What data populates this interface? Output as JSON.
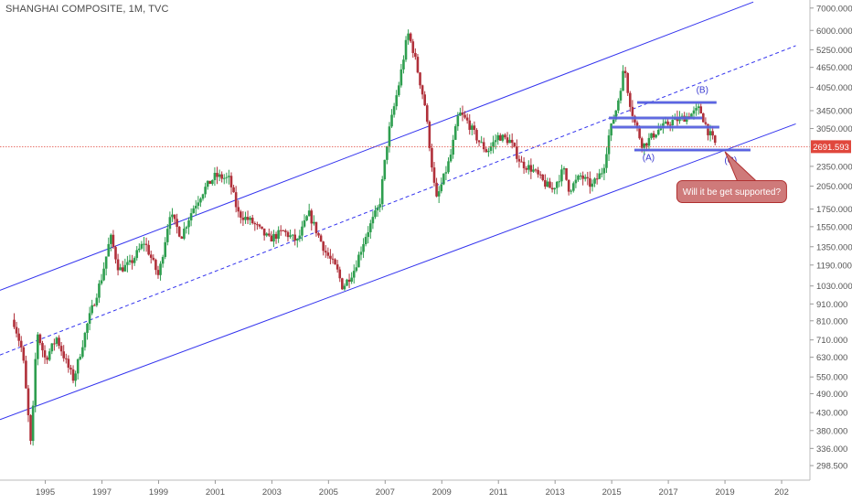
{
  "title": "SHANGHAI COMPOSITE, 1M, TVC",
  "colors": {
    "up": "#2e9e4f",
    "down": "#b0303a",
    "channel": "#3333ee",
    "label": "#3a3ad0",
    "callout_fill": "#cf7a7a",
    "callout_border": "#b03030",
    "price_line": "#e0473c",
    "highlight_band": "#6f7fd6"
  },
  "last_price": "2691.593",
  "annotations": {
    "wave_a": "(A)",
    "wave_b": "(B)",
    "wave_c": "(C)",
    "callout": "Will it be get supported?"
  },
  "chart_data": {
    "type": "candlestick",
    "title": "SHANGHAI COMPOSITE, 1M, TVC",
    "y_scale": "log",
    "ylim": [
      270,
      7400
    ],
    "xlim": [
      1993.4,
      2022.0
    ],
    "x_ticks": [
      "1995",
      "1997",
      "1999",
      "2001",
      "2003",
      "2005",
      "2007",
      "2009",
      "2011",
      "2013",
      "2015",
      "2017",
      "2019",
      "202"
    ],
    "y_ticks": [
      "7000.000",
      "6000.000",
      "5250.000",
      "4650.000",
      "4050.000",
      "3450.000",
      "3050.000",
      "2691.593",
      "2350.000",
      "2050.000",
      "1750.000",
      "1550.000",
      "1350.000",
      "1190.000",
      "1030.000",
      "910.000",
      "810.000",
      "710.000",
      "630.000",
      "550.000",
      "490.000",
      "430.000",
      "380.000",
      "336.000",
      "298.500"
    ],
    "path": [
      [
        1993.9,
        800
      ],
      [
        1994.2,
        650
      ],
      [
        1994.5,
        335
      ],
      [
        1994.7,
        760
      ],
      [
        1995.0,
        620
      ],
      [
        1995.4,
        720
      ],
      [
        1995.8,
        590
      ],
      [
        1996.0,
        540
      ],
      [
        1996.5,
        800
      ],
      [
        1997.0,
        1100
      ],
      [
        1997.3,
        1450
      ],
      [
        1997.6,
        1150
      ],
      [
        1998.0,
        1200
      ],
      [
        1998.5,
        1400
      ],
      [
        1999.0,
        1100
      ],
      [
        1999.4,
        1700
      ],
      [
        1999.8,
        1450
      ],
      [
        2000.2,
        1750
      ],
      [
        2000.6,
        2000
      ],
      [
        2001.0,
        2200
      ],
      [
        2001.5,
        2150
      ],
      [
        2001.8,
        1700
      ],
      [
        2002.3,
        1600
      ],
      [
        2002.9,
        1420
      ],
      [
        2003.4,
        1500
      ],
      [
        2003.9,
        1400
      ],
      [
        2004.3,
        1700
      ],
      [
        2004.9,
        1300
      ],
      [
        2005.3,
        1150
      ],
      [
        2005.5,
        1020
      ],
      [
        2005.9,
        1150
      ],
      [
        2006.3,
        1450
      ],
      [
        2006.8,
        1800
      ],
      [
        2007.1,
        2900
      ],
      [
        2007.5,
        4200
      ],
      [
        2007.8,
        5900
      ],
      [
        2008.0,
        5200
      ],
      [
        2008.4,
        3600
      ],
      [
        2008.8,
        1850
      ],
      [
        2009.3,
        2500
      ],
      [
        2009.6,
        3400
      ],
      [
        2009.9,
        3200
      ],
      [
        2010.3,
        2800
      ],
      [
        2010.6,
        2600
      ],
      [
        2011.0,
        2900
      ],
      [
        2011.4,
        2800
      ],
      [
        2011.8,
        2400
      ],
      [
        2012.2,
        2300
      ],
      [
        2012.6,
        2100
      ],
      [
        2012.9,
        2000
      ],
      [
        2013.3,
        2300
      ],
      [
        2013.5,
        2000
      ],
      [
        2013.9,
        2200
      ],
      [
        2014.3,
        2050
      ],
      [
        2014.7,
        2300
      ],
      [
        2014.9,
        2900
      ],
      [
        2015.2,
        3600
      ],
      [
        2015.45,
        4700
      ],
      [
        2015.6,
        3800
      ],
      [
        2015.8,
        3200
      ],
      [
        2016.1,
        2700
      ],
      [
        2016.6,
        3000
      ],
      [
        2017.1,
        3200
      ],
      [
        2017.6,
        3300
      ],
      [
        2017.9,
        3400
      ],
      [
        2018.1,
        3500
      ],
      [
        2018.4,
        3000
      ],
      [
        2018.6,
        2800
      ],
      [
        2018.7,
        2692
      ]
    ],
    "channel": {
      "upper": [
        [
          1993.4,
          1000
        ],
        [
          2020.0,
          7300
        ]
      ],
      "mid": [
        [
          1993.4,
          640
        ],
        [
          2021.5,
          5400
        ]
      ],
      "lower": [
        [
          1993.4,
          410
        ],
        [
          2021.5,
          3150
        ]
      ]
    },
    "levels": [
      {
        "y": 3650,
        "x": [
          2015.9,
          2018.7
        ]
      },
      {
        "y": 3280,
        "x": [
          2014.9,
          2018.2
        ]
      },
      {
        "y": 3080,
        "x": [
          2015.0,
          2018.8
        ]
      },
      {
        "y": 2630,
        "x": [
          2015.8,
          2019.9
        ]
      }
    ],
    "last": 2691.593
  }
}
